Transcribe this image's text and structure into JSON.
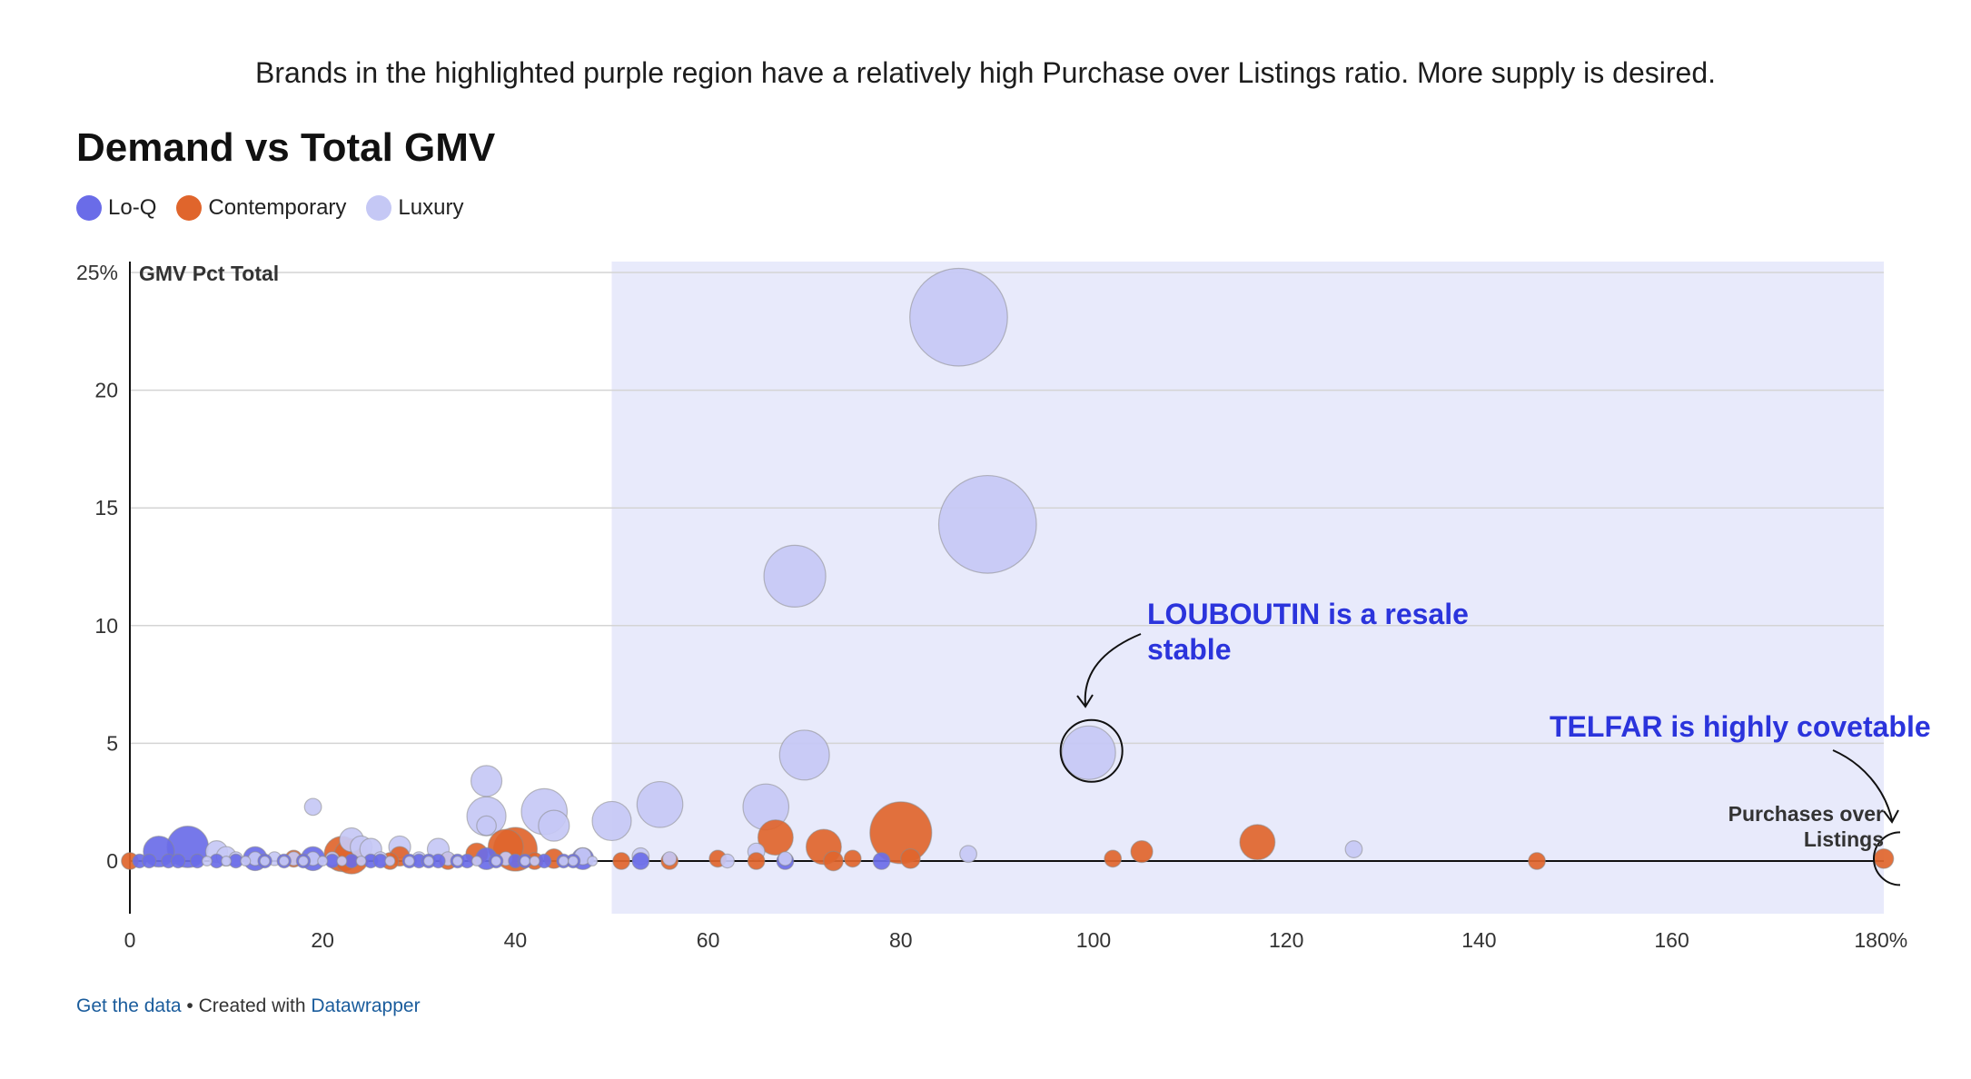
{
  "header": {
    "intro": "Brands in the highlighted purple region have a relatively high Purchase over Listings ratio. More supply is desired.",
    "title": "Demand vs Total GMV"
  },
  "legend": [
    {
      "label": "Lo-Q",
      "color": "#6a6ce8"
    },
    {
      "label": "Contemporary",
      "color": "#e0652c"
    },
    {
      "label": "Luxury",
      "color": "#c5c8f5"
    }
  ],
  "footer": {
    "get_data": "Get the data",
    "separator": " • Created with ",
    "tool": "Datawrapper"
  },
  "chart_data": {
    "type": "scatter",
    "ylabel": "GMV Pct Total",
    "xlabel": "Purchases over Listings",
    "xlim": [
      0,
      182
    ],
    "ylim": [
      -2.2,
      25
    ],
    "x_ticks": [
      {
        "value": 0,
        "label": "0"
      },
      {
        "value": 20,
        "label": "20"
      },
      {
        "value": 40,
        "label": "40"
      },
      {
        "value": 60,
        "label": "60"
      },
      {
        "value": 80,
        "label": "80"
      },
      {
        "value": 100,
        "label": "100"
      },
      {
        "value": 120,
        "label": "120"
      },
      {
        "value": 140,
        "label": "140"
      },
      {
        "value": 160,
        "label": "160"
      },
      {
        "value": 180,
        "label": "180%"
      }
    ],
    "y_ticks": [
      {
        "value": 0,
        "label": "0"
      },
      {
        "value": 5,
        "label": "5"
      },
      {
        "value": 10,
        "label": "10"
      },
      {
        "value": 15,
        "label": "15"
      },
      {
        "value": 20,
        "label": "20"
      },
      {
        "value": 25,
        "label": "25%"
      }
    ],
    "highlight_region": {
      "x_from": 50,
      "x_to": 182,
      "color": "#e8eafb"
    },
    "grid": true,
    "legend_position": "top-left",
    "series": [
      {
        "name": "Luxury",
        "color": "#c5c8f5",
        "points": [
          [
            86,
            23.1
          ],
          [
            89,
            14.3
          ],
          [
            69,
            12.1
          ],
          [
            99.5,
            4.6
          ],
          [
            70,
            4.5
          ],
          [
            66,
            2.3
          ],
          [
            55,
            2.4
          ],
          [
            50,
            1.7
          ],
          [
            43,
            2.1
          ],
          [
            44,
            1.5
          ],
          [
            37,
            3.4
          ],
          [
            37,
            1.9
          ],
          [
            37,
            1.5
          ],
          [
            19,
            2.3
          ],
          [
            23,
            0.9
          ],
          [
            24,
            0.6
          ],
          [
            25,
            0.5
          ],
          [
            28,
            0.6
          ],
          [
            32,
            0.5
          ],
          [
            9,
            0.4
          ],
          [
            10,
            0.2
          ],
          [
            127,
            0.5
          ],
          [
            87,
            0.3
          ],
          [
            65,
            0.4
          ],
          [
            53,
            0.2
          ],
          [
            47,
            0.2
          ],
          [
            62,
            0
          ],
          [
            68,
            0.1
          ],
          [
            56,
            0.1
          ],
          [
            39,
            0.1
          ],
          [
            33,
            0.1
          ],
          [
            15,
            0.1
          ],
          [
            17,
            0.1
          ],
          [
            11,
            0.1
          ],
          [
            13,
            0.1
          ],
          [
            26,
            0.1
          ],
          [
            30,
            0.1
          ],
          [
            21,
            0.1
          ],
          [
            19,
            0.1
          ],
          [
            14,
            0
          ],
          [
            16,
            0
          ],
          [
            18,
            0
          ],
          [
            20,
            0
          ],
          [
            22,
            0
          ],
          [
            24,
            0
          ],
          [
            27,
            0
          ],
          [
            29,
            0
          ],
          [
            31,
            0
          ],
          [
            34,
            0
          ],
          [
            36,
            0
          ],
          [
            38,
            0
          ],
          [
            41,
            0
          ],
          [
            42,
            0
          ],
          [
            45,
            0
          ],
          [
            46,
            0
          ],
          [
            48,
            0
          ],
          [
            12,
            0
          ],
          [
            10,
            0
          ],
          [
            8,
            0
          ]
        ],
        "sizes": [
          10,
          10,
          4,
          3,
          2.6,
          2.2,
          2.2,
          1.6,
          2.2,
          1,
          1,
          1.6,
          0.4,
          0.3,
          0.6,
          0.5,
          0.5,
          0.5,
          0.5,
          0.5,
          0.4,
          0.3,
          0.3,
          0.3,
          0.3,
          0.3,
          0.2,
          0.2,
          0.2,
          0.2,
          0.2,
          0.2,
          0.2,
          0.2,
          0.2,
          0.2,
          0.2,
          0.2,
          0.2,
          0.1,
          0.1,
          0.1,
          0.1,
          0.1,
          0.1,
          0.1,
          0.1,
          0.1,
          0.1,
          0.1,
          0.1,
          0.1,
          0.1,
          0.1,
          0.1,
          0.1,
          0.1,
          0.1,
          0.1
        ]
      },
      {
        "name": "Contemporary",
        "color": "#e0652c",
        "points": [
          [
            80,
            1.2
          ],
          [
            117,
            0.8
          ],
          [
            67,
            1.0
          ],
          [
            72,
            0.6
          ],
          [
            40,
            0.5
          ],
          [
            39,
            0.6
          ],
          [
            22,
            0.3
          ],
          [
            23,
            0.2
          ],
          [
            36,
            0.3
          ],
          [
            105,
            0.4
          ],
          [
            81,
            0.1
          ],
          [
            102,
            0.1
          ],
          [
            146,
            0
          ],
          [
            182,
            0.1
          ],
          [
            73,
            0
          ],
          [
            75,
            0.1
          ],
          [
            61,
            0.1
          ],
          [
            56,
            0
          ],
          [
            51,
            0
          ],
          [
            65,
            0
          ],
          [
            44,
            0.1
          ],
          [
            42,
            0
          ],
          [
            28,
            0.2
          ],
          [
            17,
            0.1
          ],
          [
            27,
            0
          ],
          [
            33,
            0
          ],
          [
            0,
            0
          ]
        ],
        "sizes": [
          4,
          1.3,
          1.3,
          1.3,
          2,
          1.3,
          1.3,
          1.3,
          0.5,
          0.5,
          0.4,
          0.3,
          0.3,
          0.4,
          0.4,
          0.3,
          0.3,
          0.3,
          0.3,
          0.3,
          0.4,
          0.3,
          0.4,
          0.3,
          0.3,
          0.3,
          0.3
        ]
      },
      {
        "name": "Lo-Q",
        "color": "#6a6ce8",
        "points": [
          [
            6,
            0.6
          ],
          [
            3,
            0.4
          ],
          [
            13,
            0.1
          ],
          [
            19,
            0.1
          ],
          [
            37,
            0.1
          ],
          [
            47,
            0.1
          ],
          [
            68,
            0
          ],
          [
            78,
            0
          ],
          [
            53,
            0
          ],
          [
            1,
            0
          ],
          [
            2,
            0
          ],
          [
            4,
            0
          ],
          [
            5,
            0
          ],
          [
            7,
            0
          ],
          [
            9,
            0
          ],
          [
            11,
            0
          ],
          [
            14,
            0
          ],
          [
            16,
            0
          ],
          [
            18,
            0
          ],
          [
            21,
            0
          ],
          [
            23,
            0
          ],
          [
            25,
            0
          ],
          [
            26,
            0
          ],
          [
            29,
            0
          ],
          [
            30,
            0
          ],
          [
            31,
            0
          ],
          [
            32,
            0
          ],
          [
            34,
            0
          ],
          [
            35,
            0
          ],
          [
            38,
            0
          ],
          [
            40,
            0
          ],
          [
            41,
            0
          ],
          [
            43,
            0
          ],
          [
            45,
            0
          ],
          [
            46,
            0
          ]
        ],
        "sizes": [
          1.8,
          1,
          0.6,
          0.6,
          0.5,
          0.5,
          0.3,
          0.3,
          0.3,
          0.2,
          0.2,
          0.2,
          0.2,
          0.2,
          0.2,
          0.2,
          0.2,
          0.2,
          0.2,
          0.2,
          0.2,
          0.2,
          0.2,
          0.2,
          0.2,
          0.2,
          0.2,
          0.2,
          0.2,
          0.2,
          0.2,
          0.2,
          0.2,
          0.2,
          0.2
        ]
      }
    ],
    "annotations": [
      {
        "text_lines": [
          "LOUBOUTIN is a resale",
          "stable"
        ],
        "x": 99.5,
        "y": 4.6,
        "color": "#2b34dc"
      },
      {
        "text_lines": [
          "TELFAR is highly covetable"
        ],
        "x": 182,
        "y": 0.1,
        "color": "#2b34dc"
      }
    ]
  }
}
